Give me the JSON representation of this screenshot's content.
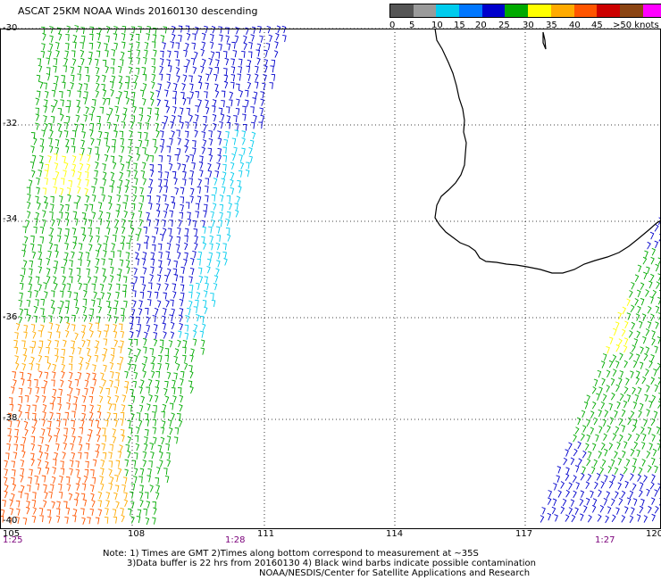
{
  "title": "ASCAT 25KM NOAA Winds 20160130 descending",
  "legend": {
    "labels": [
      "0",
      "5",
      "10",
      "15",
      "20",
      "25",
      "30",
      "35",
      "40",
      "45",
      ">50 knots"
    ],
    "colors": [
      "#555555",
      "#9a9a9a",
      "#00ccee",
      "#0077ff",
      "#0000cc",
      "#00aa00",
      "#ffff00",
      "#ffaa00",
      "#ff5500",
      "#cc0000",
      "#8b4513",
      "#ff00ff",
      "#6a00cc"
    ]
  },
  "map": {
    "lat_labels": [
      "-30",
      "-32",
      "-34",
      "-36",
      "-38",
      "-40"
    ],
    "lon_labels": [
      "105",
      "108",
      "111",
      "114",
      "117",
      "120"
    ],
    "pass_times": [
      "1:25",
      "1:28",
      "1:27"
    ]
  },
  "notes": [
    "Note: 1) Times are GMT 2)Times along bottom correspond to measurement at ~35S",
    "3)Data buffer is 22 hrs from 20160130 4) Black wind barbs indicate possible contamination",
    "NOAA/NESDIS/Center for Satellite Applications and Research"
  ]
}
